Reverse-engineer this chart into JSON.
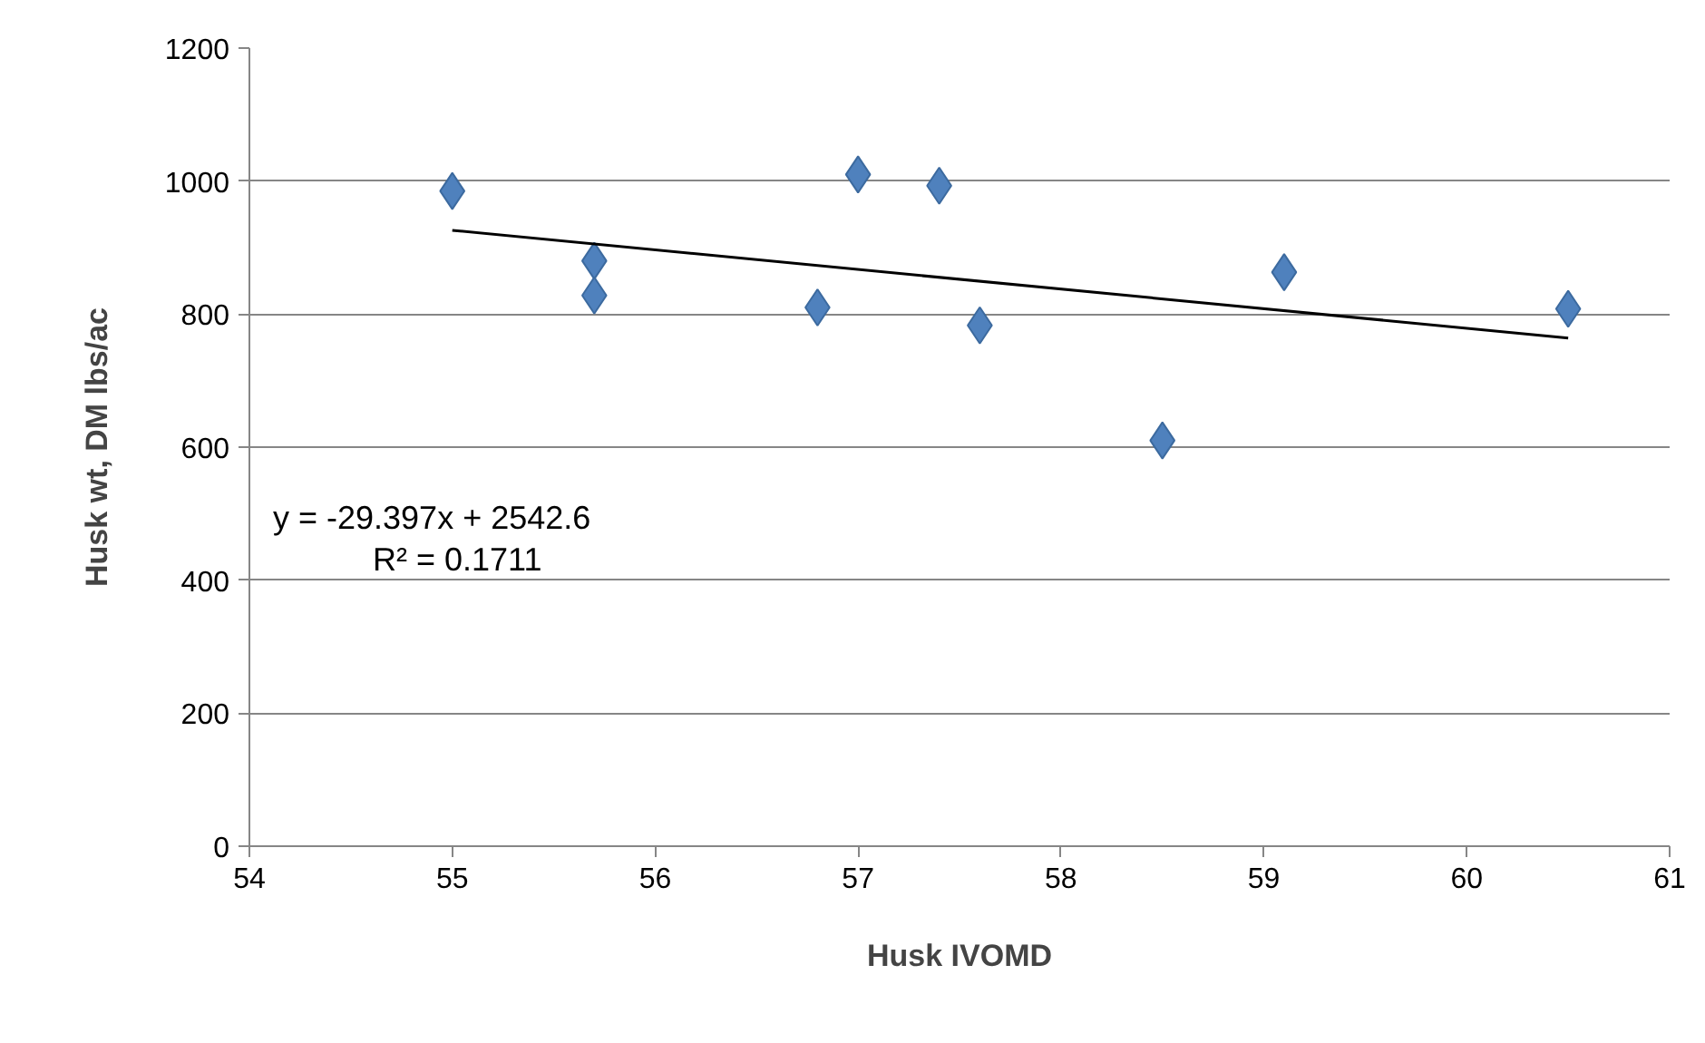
{
  "chart_data": {
    "type": "scatter",
    "xlabel": "Husk IVOMD",
    "ylabel": "Husk wt, DM lbs/ac",
    "xlim": [
      54,
      61
    ],
    "xticks": [
      54,
      55,
      56,
      57,
      58,
      59,
      60,
      61
    ],
    "ylim": [
      0,
      1200
    ],
    "yticks": [
      0,
      200,
      400,
      600,
      800,
      1000,
      1200
    ],
    "grid": "y",
    "marker": "diamond",
    "series": [
      {
        "color": "#4f81bd",
        "x": [
          55,
          55.7,
          55.7,
          56.8,
          57,
          57.4,
          57.6,
          58.5,
          59.1,
          60.5
        ],
        "values": [
          985,
          880,
          828,
          810,
          1010,
          993,
          783,
          610,
          863,
          808
        ]
      },
      {
        "type": "line",
        "marker": "none",
        "color": "#000000",
        "x": [
          55,
          60.5
        ],
        "values": [
          926,
          764
        ]
      }
    ],
    "annotations": [
      "y = -29.397x + 2542.6",
      "R² = 0.1711"
    ]
  }
}
